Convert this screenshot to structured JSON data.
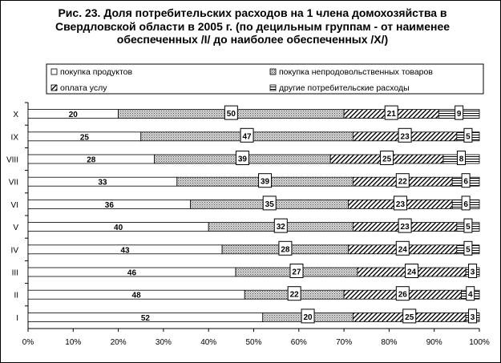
{
  "chart_data": {
    "type": "bar",
    "stacked": true,
    "orientation": "horizontal",
    "percent_stacked": true,
    "title": "Рис. 23. Доля потребительских расходов на 1 члена домохозяйства в Свердловской области в 2005 г. (по децильным группам - от наименее обеспеченных /I/   до наиболее обеспеченных /X/)",
    "categories": [
      "X",
      "IX",
      "VIII",
      "VII",
      "VI",
      "V",
      "IV",
      "III",
      "II",
      "I"
    ],
    "series": [
      {
        "name": "покупка продуктов",
        "values": [
          20,
          25,
          28,
          33,
          36,
          40,
          43,
          46,
          48,
          52
        ]
      },
      {
        "name": "покупка непродовольственных товаров",
        "values": [
          50,
          47,
          39,
          39,
          35,
          32,
          28,
          27,
          22,
          20
        ]
      },
      {
        "name": "оплата услу",
        "values": [
          21,
          23,
          25,
          22,
          23,
          23,
          24,
          24,
          26,
          25
        ]
      },
      {
        "name": "другие потребительские расходы",
        "values": [
          9,
          5,
          8,
          6,
          6,
          5,
          5,
          3,
          4,
          3
        ]
      }
    ],
    "x_ticks": [
      "0%",
      "10%",
      "20%",
      "30%",
      "40%",
      "50%",
      "60%",
      "70%",
      "80%",
      "90%",
      "100%"
    ],
    "xlim": [
      0,
      100
    ],
    "legend_position": "top",
    "grid": false
  },
  "colors": {
    "background": "#ffffff",
    "series_1": "#ffffff",
    "series_2_pattern": "dotted-grey",
    "series_3_pattern": "diagonal-hatch",
    "series_4_pattern": "horizontal-lines",
    "axis": "#000000"
  }
}
